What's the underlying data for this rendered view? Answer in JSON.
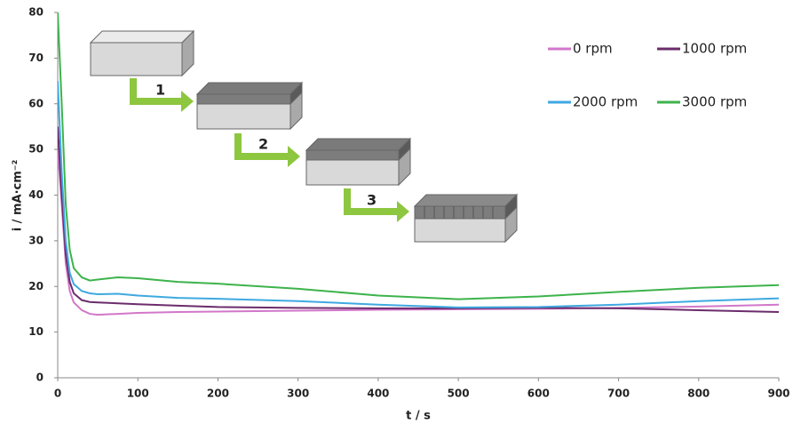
{
  "chart_data": {
    "type": "line",
    "xlabel": "t / s",
    "ylabel": "i / mA·cm⁻²",
    "x": [
      0,
      5,
      10,
      15,
      20,
      30,
      40,
      50,
      75,
      100,
      150,
      200,
      300,
      400,
      500,
      600,
      700,
      800,
      900
    ],
    "series": [
      {
        "name": "0 rpm",
        "color": "#d277c9",
        "values": [
          50,
          38,
          25,
          19,
          16.5,
          14.8,
          14,
          13.8,
          14,
          14.2,
          14.4,
          14.5,
          14.7,
          14.9,
          15,
          15.1,
          15.3,
          15.6,
          16
        ]
      },
      {
        "name": "1000 rpm",
        "color": "#6b2c6b",
        "values": [
          55,
          40,
          27,
          21,
          18.5,
          17,
          16.6,
          16.5,
          16.3,
          16.1,
          15.8,
          15.5,
          15.3,
          15.2,
          15.2,
          15.3,
          15.2,
          14.8,
          14.4
        ]
      },
      {
        "name": "2000 rpm",
        "color": "#3fa9e0",
        "values": [
          65,
          45,
          30,
          23,
          20.5,
          19,
          18.5,
          18.3,
          18.4,
          18,
          17.5,
          17.3,
          16.8,
          16,
          15.4,
          15.5,
          16,
          16.8,
          17.4
        ]
      },
      {
        "name": "3000 rpm",
        "color": "#3db34b",
        "values": [
          80,
          60,
          38,
          28,
          24,
          22,
          21.3,
          21.5,
          22,
          21.8,
          21,
          20.6,
          19.5,
          18,
          17.2,
          17.8,
          18.8,
          19.7,
          20.3
        ]
      }
    ],
    "xlim": [
      0,
      900
    ],
    "xticks": [
      0,
      100,
      200,
      300,
      400,
      500,
      600,
      700,
      800,
      900
    ],
    "ylim": [
      0,
      80
    ],
    "yticks": [
      0,
      10,
      20,
      30,
      40,
      50,
      60,
      70,
      80
    ],
    "annotations": [
      "1",
      "2",
      "3"
    ]
  }
}
